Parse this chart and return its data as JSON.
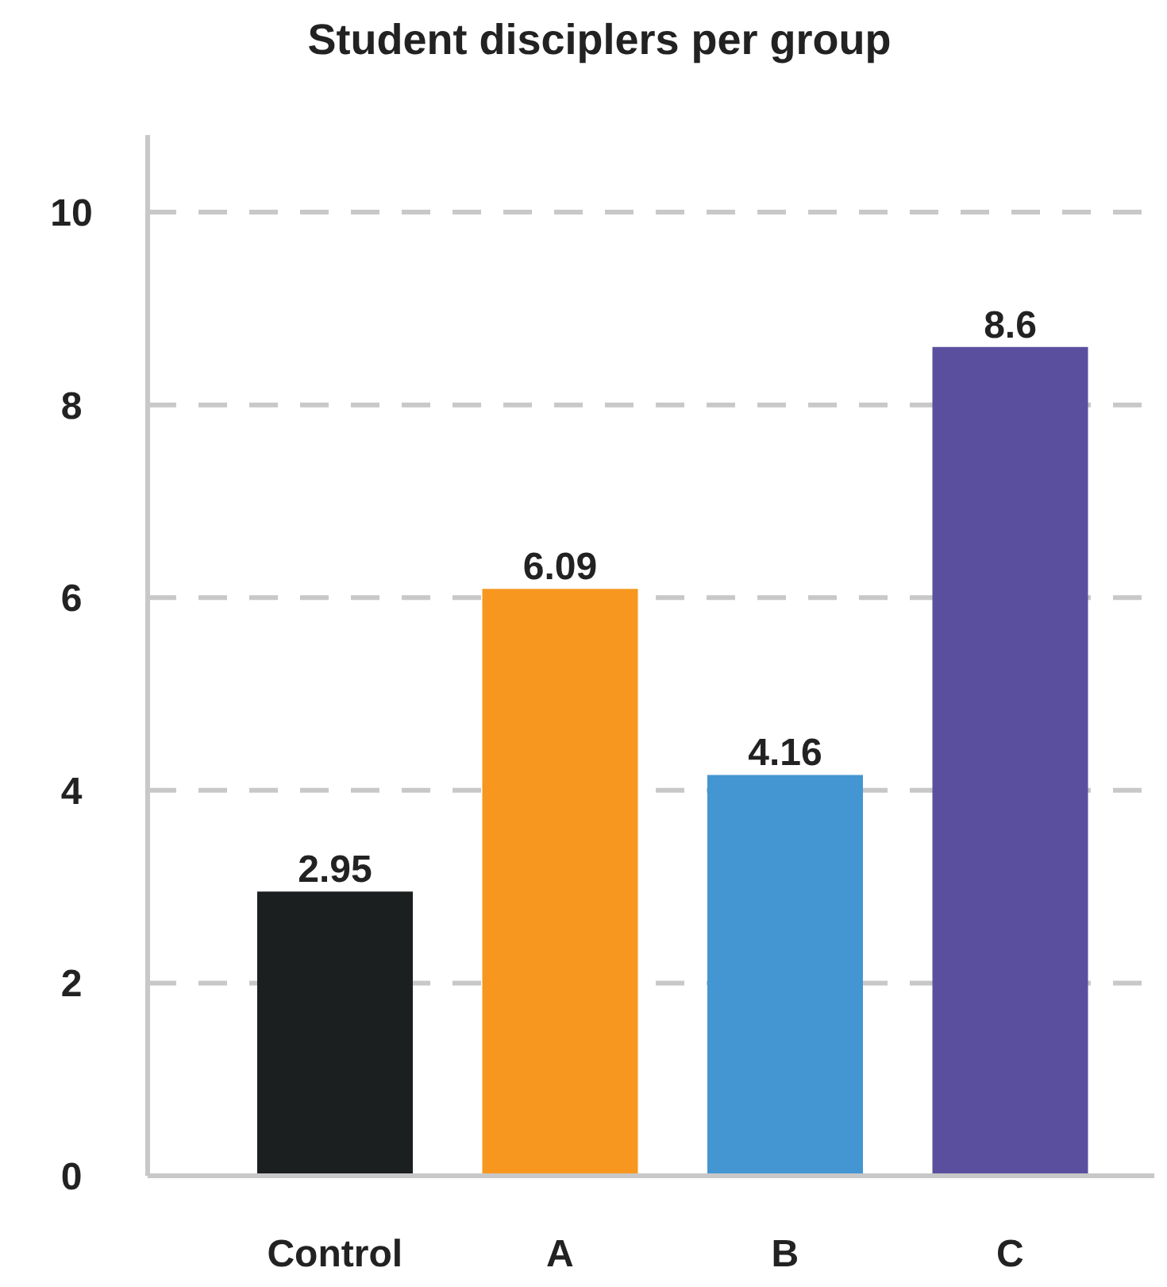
{
  "chart_data": {
    "type": "bar",
    "title": "Student disciplers per group",
    "categories": [
      "Control",
      "A",
      "B",
      "C"
    ],
    "values": [
      2.95,
      6.09,
      4.16,
      8.6
    ],
    "colors": [
      "#1b1f20",
      "#f7971f",
      "#4396d2",
      "#5a4f9f"
    ],
    "ylim": [
      0,
      10.8
    ],
    "yticks": [
      0,
      2,
      4,
      6,
      8,
      10
    ],
    "grid": "y",
    "data_labels": true
  }
}
